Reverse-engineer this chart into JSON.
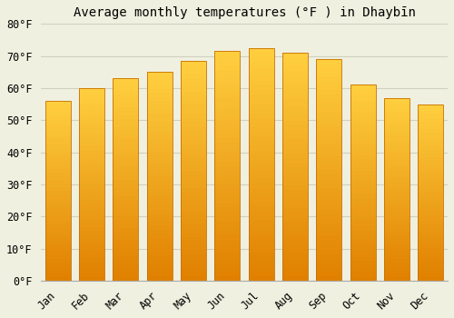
{
  "title": "Average monthly temperatures (°F ) in Dhaybīn",
  "months": [
    "Jan",
    "Feb",
    "Mar",
    "Apr",
    "May",
    "Jun",
    "Jul",
    "Aug",
    "Sep",
    "Oct",
    "Nov",
    "Dec"
  ],
  "values": [
    56,
    60,
    63,
    65,
    68.5,
    71.5,
    72.5,
    71,
    69,
    61,
    57,
    55
  ],
  "bar_color_light": "#FFD966",
  "bar_color_dark": "#E08000",
  "bar_edge_color": "#C87000",
  "background_color": "#f0f0e0",
  "grid_color": "#d0d0c0",
  "ylim": [
    0,
    80
  ],
  "yticks": [
    0,
    10,
    20,
    30,
    40,
    50,
    60,
    70,
    80
  ],
  "title_fontsize": 10,
  "tick_fontsize": 8.5
}
